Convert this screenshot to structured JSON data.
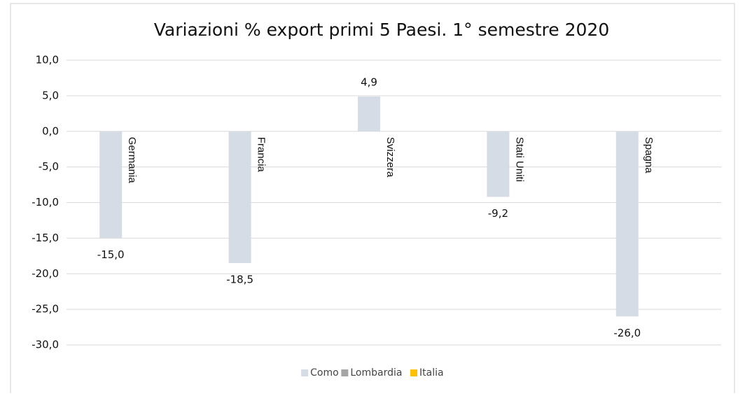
{
  "chart_data": {
    "type": "bar",
    "title": "Variazioni % export primi 5 Paesi. 1° semestre 2020",
    "categories": [
      "Germania",
      "Francia",
      "Svizzera",
      "Stati Uniti",
      "Spagna"
    ],
    "series": [
      {
        "name": "Como",
        "color": "#d6dce5",
        "values": [
          -15.0,
          -18.5,
          4.9,
          -9.2,
          -26.0
        ],
        "value_labels": [
          "-15,0",
          "-18,5",
          "4,9",
          "-9,2",
          "-26,0"
        ]
      },
      {
        "name": "Lombardia",
        "color": "#a5a5a5",
        "values": [
          null,
          null,
          null,
          null,
          null
        ]
      },
      {
        "name": "Italia",
        "color": "#ffc000",
        "values": [
          null,
          null,
          null,
          null,
          null
        ]
      }
    ],
    "ylim": [
      -30,
      10
    ],
    "yticks": [
      {
        "value": -30,
        "label": "-30,0"
      },
      {
        "value": -25,
        "label": "-25,0"
      },
      {
        "value": -20,
        "label": "-20,0"
      },
      {
        "value": -15,
        "label": "-15,0"
      },
      {
        "value": -10,
        "label": "-10,0"
      },
      {
        "value": -5,
        "label": "-5,0"
      },
      {
        "value": 0,
        "label": "0,0"
      },
      {
        "value": 5,
        "label": "5,0"
      },
      {
        "value": 10,
        "label": "10,0"
      }
    ],
    "grid": true,
    "legend": "bottom"
  }
}
